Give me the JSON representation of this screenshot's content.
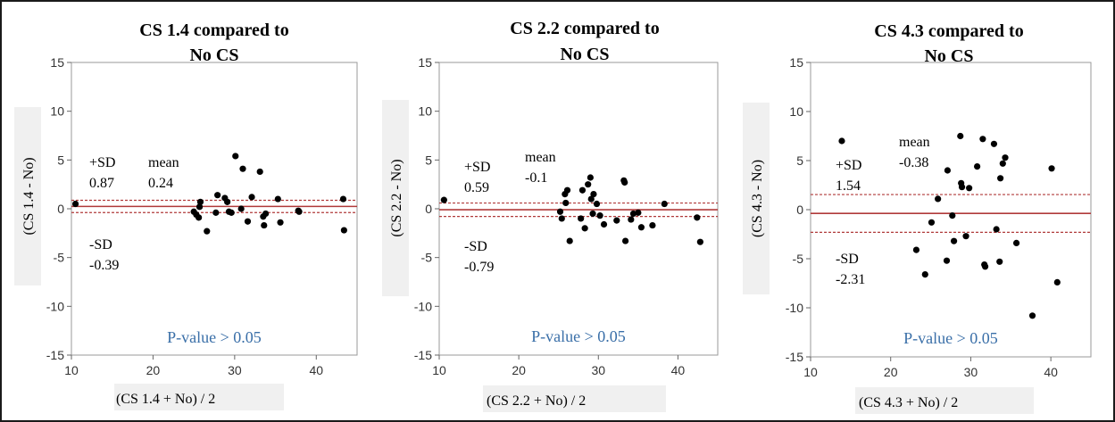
{
  "chart_data": [
    {
      "type": "scatter",
      "title": [
        "CS 1.4 compared to",
        "No CS"
      ],
      "xlabel": "(CS 1.4 + No) / 2",
      "ylabel": "(CS 1.4 - No)",
      "xlim": [
        10,
        45
      ],
      "ylim": [
        -15,
        15
      ],
      "xticks": [
        10,
        20,
        30,
        40
      ],
      "yticks": [
        15,
        10,
        5,
        0,
        -5,
        -10,
        -15
      ],
      "mean": 0.24,
      "upper_sd": 0.87,
      "lower_sd": -0.39,
      "annotations": {
        "plus_sd_label": "+SD",
        "plus_sd_value": "0.87",
        "mean_label": "mean",
        "mean_value": "0.24",
        "minus_sd_label": "-SD",
        "minus_sd_value": "-0.39"
      },
      "pvalue": "P-value > 0.05",
      "points": [
        [
          10.5,
          0.5
        ],
        [
          25,
          -0.3
        ],
        [
          25.3,
          -0.6
        ],
        [
          25.6,
          -0.9
        ],
        [
          25.8,
          0.7
        ],
        [
          25.7,
          0.2
        ],
        [
          26.6,
          -2.3
        ],
        [
          27.7,
          -0.4
        ],
        [
          27.9,
          1.4
        ],
        [
          28.8,
          1.1
        ],
        [
          29.1,
          0.7
        ],
        [
          29.3,
          -0.3
        ],
        [
          29.6,
          -0.4
        ],
        [
          30.1,
          5.4
        ],
        [
          30.8,
          0.0
        ],
        [
          31.0,
          4.1
        ],
        [
          31.6,
          -1.3
        ],
        [
          32.1,
          1.2
        ],
        [
          33.1,
          3.8
        ],
        [
          33.5,
          -0.8
        ],
        [
          33.6,
          -1.7
        ],
        [
          33.8,
          -0.5
        ],
        [
          35.3,
          1.0
        ],
        [
          35.6,
          -1.4
        ],
        [
          37.8,
          -0.2
        ],
        [
          37.9,
          -0.3
        ],
        [
          43.3,
          1.0
        ],
        [
          43.4,
          -2.2
        ]
      ]
    },
    {
      "type": "scatter",
      "title": [
        "CS 2.2 compared to",
        "No CS"
      ],
      "xlabel": "(CS 2.2 + No) / 2",
      "ylabel": "(CS 2.2 - No)",
      "xlim": [
        10,
        45
      ],
      "ylim": [
        -15,
        15
      ],
      "xticks": [
        10,
        20,
        30,
        40
      ],
      "yticks": [
        15,
        10,
        5,
        0,
        -5,
        -10,
        -15
      ],
      "mean": -0.1,
      "upper_sd": 0.59,
      "lower_sd": -0.79,
      "annotations": {
        "plus_sd_label": "+SD",
        "plus_sd_value": "0.59",
        "mean_label": "mean",
        "mean_value": "-0.1",
        "minus_sd_label": "-SD",
        "minus_sd_value": "-0.79"
      },
      "pvalue": "P-value > 0.05",
      "points": [
        [
          10.6,
          0.9
        ],
        [
          25.2,
          -0.3
        ],
        [
          25.4,
          -1.0
        ],
        [
          25.8,
          1.5
        ],
        [
          25.9,
          0.6
        ],
        [
          26.1,
          1.9
        ],
        [
          26.4,
          -3.3
        ],
        [
          27.8,
          -1.0
        ],
        [
          28.0,
          1.9
        ],
        [
          28.3,
          -2.0
        ],
        [
          28.7,
          2.5
        ],
        [
          29.0,
          3.2
        ],
        [
          29.1,
          1.0
        ],
        [
          29.3,
          -0.5
        ],
        [
          29.4,
          1.5
        ],
        [
          29.8,
          0.5
        ],
        [
          30.2,
          -0.7
        ],
        [
          30.7,
          -1.6
        ],
        [
          32.3,
          -1.2
        ],
        [
          33.2,
          2.9
        ],
        [
          33.3,
          2.7
        ],
        [
          33.4,
          -3.3
        ],
        [
          34.1,
          -1.1
        ],
        [
          34.4,
          -0.5
        ],
        [
          35.0,
          -0.4
        ],
        [
          35.4,
          -1.9
        ],
        [
          36.8,
          -1.7
        ],
        [
          38.3,
          0.5
        ],
        [
          42.4,
          -0.9
        ],
        [
          42.8,
          -3.4
        ]
      ]
    },
    {
      "type": "scatter",
      "title": [
        "CS 4.3 compared to",
        "No CS"
      ],
      "xlabel": "(CS 4.3 + No) / 2",
      "ylabel": "(CS 4.3 - No)",
      "xlim": [
        10,
        45
      ],
      "ylim": [
        -15,
        15
      ],
      "xticks": [
        10,
        20,
        30,
        40
      ],
      "yticks": [
        15,
        10,
        5,
        0,
        -5,
        -10,
        -15
      ],
      "mean": -0.38,
      "upper_sd": 1.54,
      "lower_sd": -2.31,
      "annotations": {
        "plus_sd_label": "+SD",
        "plus_sd_value": "1.54",
        "mean_label": "mean",
        "mean_value": "-0.38",
        "minus_sd_label": "-SD",
        "minus_sd_value": "-2.31"
      },
      "pvalue": "P-value > 0.05",
      "points": [
        [
          13.9,
          7.0
        ],
        [
          23.2,
          -4.1
        ],
        [
          24.3,
          -6.6
        ],
        [
          25.1,
          -1.3
        ],
        [
          25.9,
          1.1
        ],
        [
          27.0,
          -5.2
        ],
        [
          27.1,
          4.0
        ],
        [
          27.7,
          -0.6
        ],
        [
          27.9,
          -3.2
        ],
        [
          28.7,
          7.5
        ],
        [
          28.8,
          2.7
        ],
        [
          28.9,
          2.3
        ],
        [
          29.4,
          -2.7
        ],
        [
          29.8,
          2.2
        ],
        [
          30.8,
          4.4
        ],
        [
          31.5,
          7.2
        ],
        [
          31.7,
          -5.6
        ],
        [
          31.8,
          -5.8
        ],
        [
          32.9,
          6.7
        ],
        [
          33.2,
          -2.0
        ],
        [
          33.6,
          -5.3
        ],
        [
          33.7,
          3.2
        ],
        [
          34.0,
          4.7
        ],
        [
          34.3,
          5.3
        ],
        [
          35.7,
          -3.4
        ],
        [
          37.7,
          -10.8
        ],
        [
          40.1,
          4.2
        ],
        [
          40.8,
          -7.4
        ]
      ]
    }
  ]
}
